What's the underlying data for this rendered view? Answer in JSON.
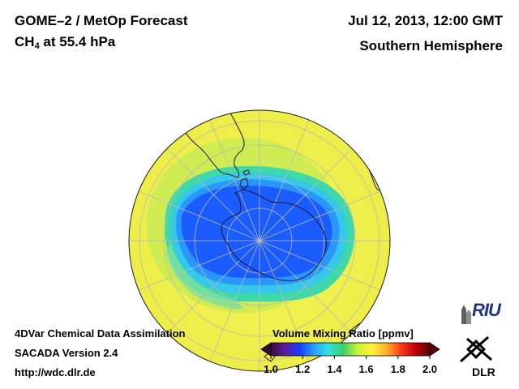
{
  "header": {
    "product": "GOME–2 / MetOp Forecast",
    "species_prefix": "CH",
    "species_subscript": "4",
    "species_level": "at 55.4 hPa",
    "date_time": "Jul 12, 2013, 12:00 GMT",
    "region": "Southern Hemisphere"
  },
  "footer": {
    "line1": "4DVar Chemical Data Assimilation",
    "line2": "SACADA Version 2.4",
    "line3": "http://wdc.dlr.de"
  },
  "colorbar": {
    "title": "Volume Mixing Ratio [ppmv]",
    "ticks": [
      "1.0",
      "1.2",
      "1.4",
      "1.6",
      "1.8",
      "2.0"
    ],
    "range": [
      1.0,
      2.0
    ],
    "stops": [
      "#3a0a3a",
      "#5a1fa0",
      "#1a3cff",
      "#2aa0ff",
      "#33e0e0",
      "#3ad06a",
      "#c8f23a",
      "#fff23a",
      "#ffb02a",
      "#ff3a1a",
      "#c00010",
      "#5a0005"
    ]
  },
  "logos": {
    "riu": "RIU",
    "dlr": "DLR"
  },
  "map": {
    "projection": "orthographic south polar",
    "field": "CH4 volume mixing ratio",
    "background_value_ppmv": 1.6,
    "polar_minimum_ppmv": 1.25,
    "colors": {
      "yellow": "#f2f252",
      "green": "#7fe06a",
      "cyan": "#3fd8e0",
      "lightblue": "#2aa6ff",
      "blue": "#1a5cff",
      "darkblue": "#1a3cf0",
      "grid": "#b8b8b8",
      "coast": "#1a1a1a"
    }
  }
}
